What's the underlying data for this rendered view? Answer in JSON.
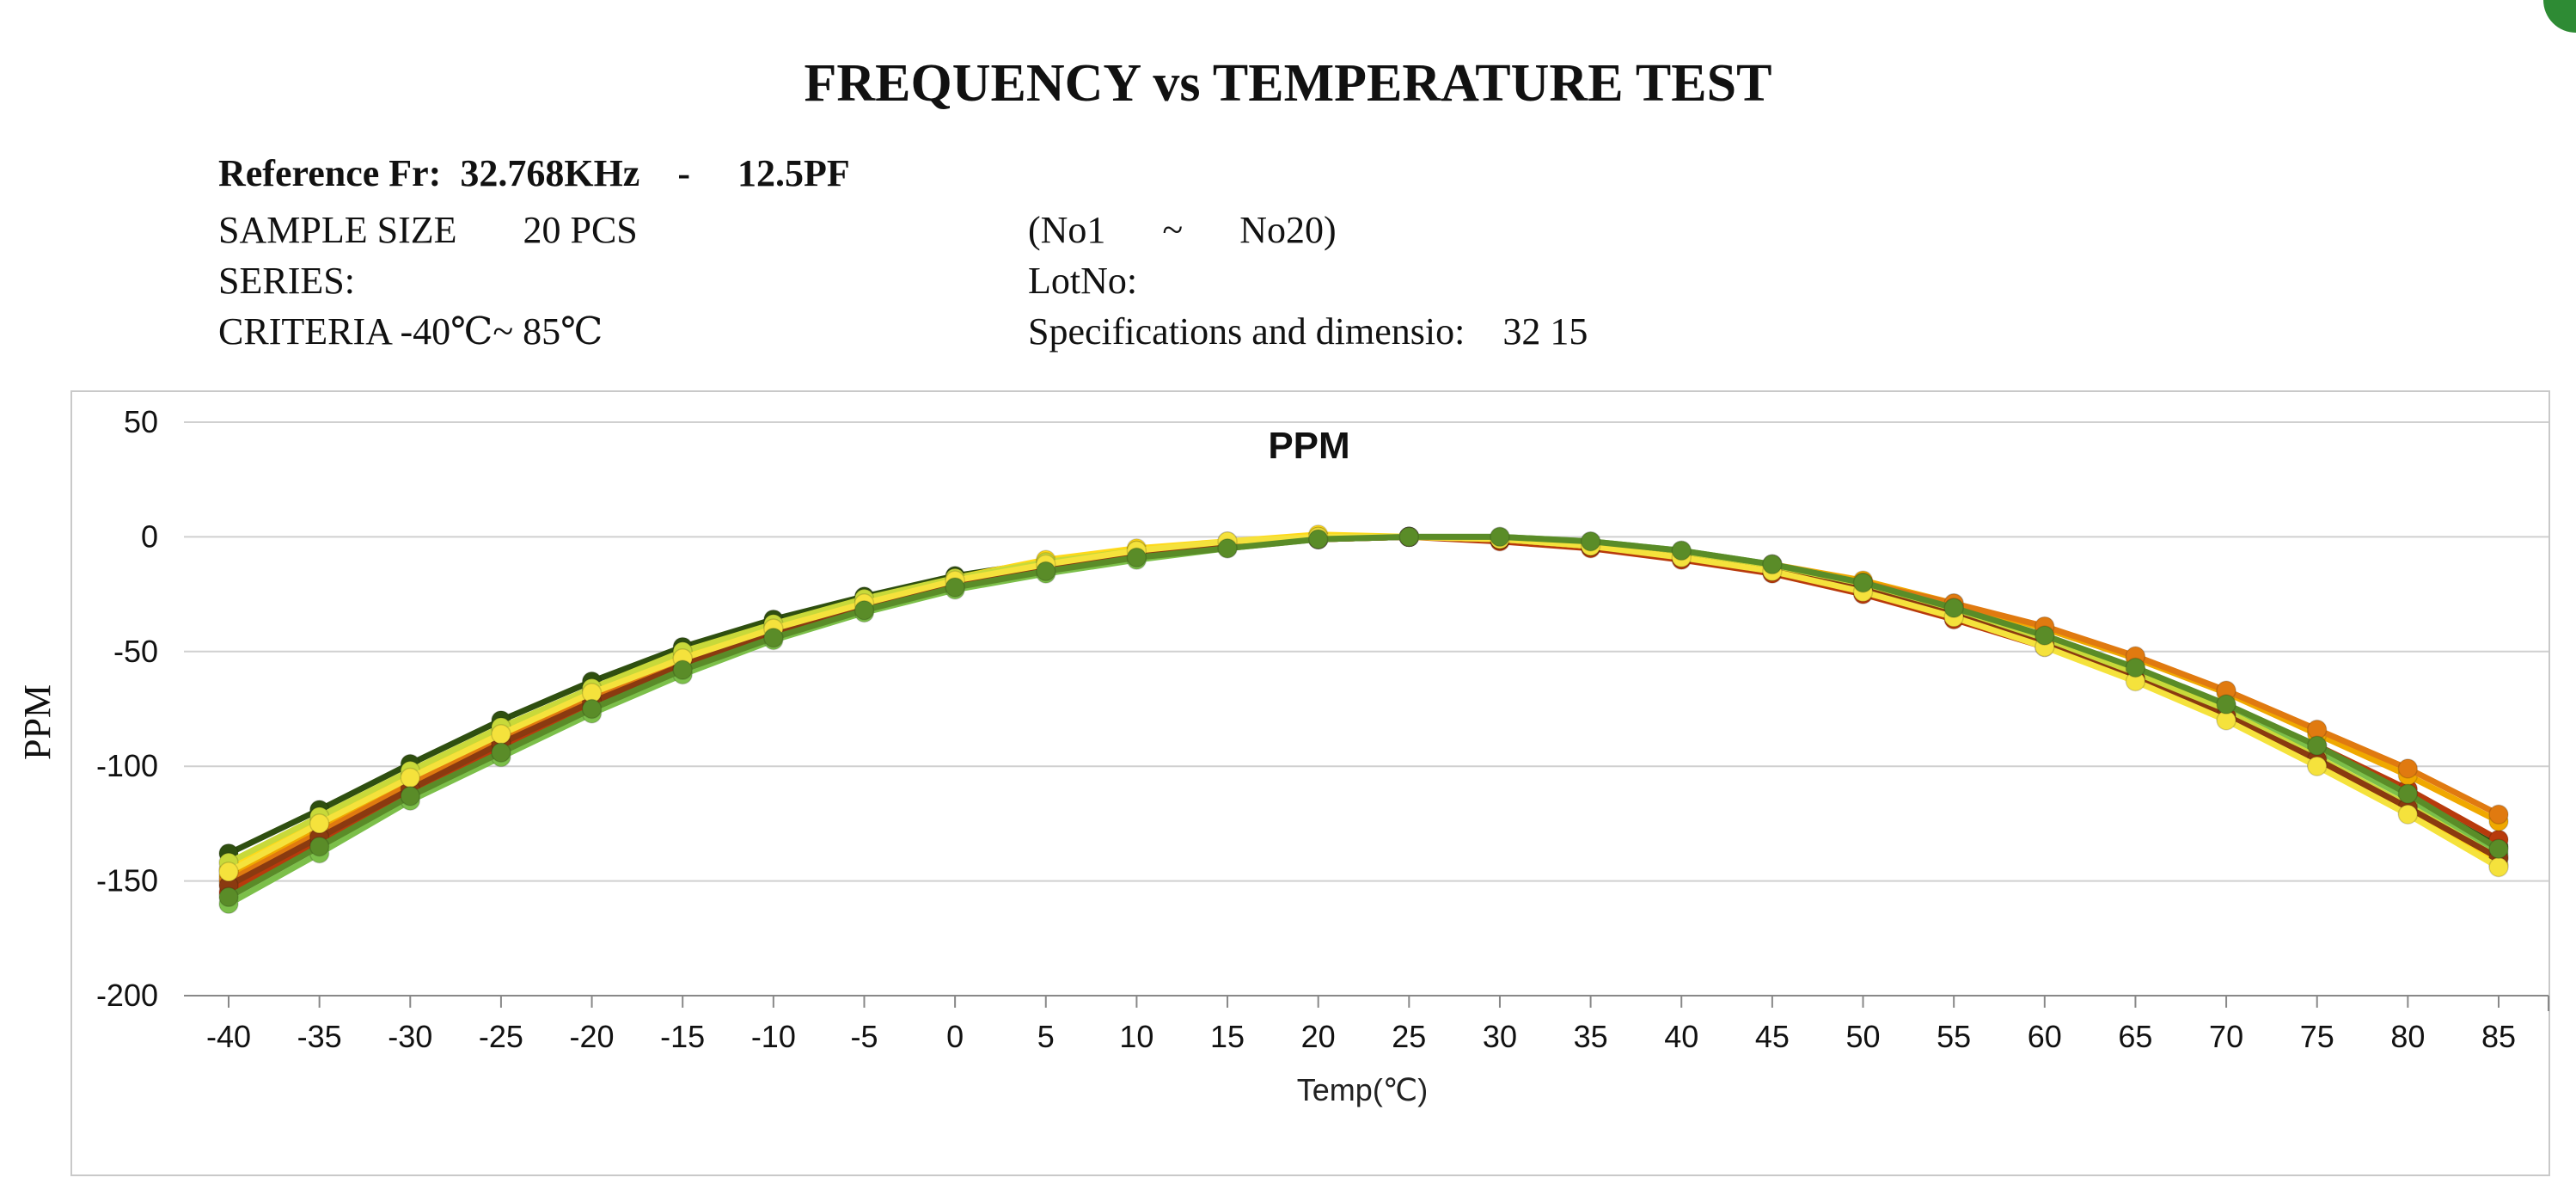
{
  "title": "FREQUENCY vs TEMPERATURE TEST",
  "info": {
    "reference": "Reference Fr:  32.768KHz    -     12.5PF",
    "sample_size": "SAMPLE SIZE       20 PCS",
    "range": "(No1      ~      No20)",
    "series": "SERIES:",
    "lot": "LotNo:",
    "criteria": "CRITERIA -40℃~ 85℃",
    "specs": "Specifications and dimensio:    32 15"
  },
  "colors": {
    "grid": "#d0d0d0",
    "axis": "#888888",
    "series": [
      "#2f4f10",
      "#b83a0c",
      "#f0a800",
      "#ffd91a",
      "#e07a10",
      "#7cbf4a",
      "#c8d93a",
      "#8a3a10",
      "#f5e23c",
      "#5a8c28"
    ]
  },
  "chart_data": {
    "type": "line",
    "title": "PPM",
    "xlabel": "Temp(℃)",
    "ylabel": "PPM",
    "ylim": [
      -200,
      50
    ],
    "xlim": [
      -40,
      85
    ],
    "grid": true,
    "yticks": [
      "50",
      "0",
      "-50",
      "-100",
      "-150",
      "-200"
    ],
    "x": [
      -40,
      -35,
      -30,
      -25,
      -20,
      -15,
      -10,
      -5,
      0,
      5,
      10,
      15,
      20,
      25,
      30,
      35,
      40,
      45,
      50,
      55,
      60,
      65,
      70,
      75,
      80,
      85
    ],
    "xtick_labels": [
      "-40",
      "-35",
      "-30",
      "-25",
      "-20",
      "-15",
      "-10",
      "-5",
      "0",
      "5",
      "10",
      "15",
      "20",
      "25",
      "30",
      "35",
      "40",
      "45",
      "50",
      "55",
      "60",
      "65",
      "70",
      "75",
      "80",
      "85"
    ],
    "series": [
      {
        "values": [
          -138,
          -119,
          -99,
          -80,
          -63,
          -48,
          -36,
          -26,
          -17,
          -11,
          -6,
          -3,
          -1,
          0,
          -1,
          -3,
          -7,
          -13,
          -21,
          -31,
          -44,
          -58,
          -74,
          -93,
          -113,
          -135
        ]
      },
      {
        "values": [
          -155,
          -133,
          -112,
          -92,
          -74,
          -57,
          -42,
          -30,
          -21,
          -14,
          -8,
          -4,
          -1,
          0,
          -2,
          -5,
          -10,
          -16,
          -25,
          -36,
          -48,
          -61,
          -76,
          -91,
          -110,
          -132
        ]
      },
      {
        "values": [
          -148,
          -127,
          -106,
          -87,
          -69,
          -54,
          -40,
          -29,
          -19,
          -12,
          -7,
          -3,
          -1,
          0,
          -1,
          -3,
          -7,
          -12,
          -19,
          -29,
          -40,
          -53,
          -68,
          -86,
          -104,
          -124
        ]
      },
      {
        "values": [
          -145,
          -124,
          -104,
          -85,
          -67,
          -52,
          -39,
          -28,
          -18,
          -10,
          -5,
          -2,
          1,
          0,
          -1,
          -4,
          -8,
          -14,
          -22,
          -33,
          -46,
          -61,
          -79,
          -99,
          -120,
          -143
        ]
      },
      {
        "values": [
          -150,
          -129,
          -108,
          -89,
          -71,
          -55,
          -41,
          -30,
          -20,
          -13,
          -7,
          -3,
          -1,
          0,
          -1,
          -3,
          -7,
          -12,
          -20,
          -29,
          -39,
          -52,
          -67,
          -84,
          -101,
          -121
        ]
      },
      {
        "values": [
          -160,
          -138,
          -115,
          -96,
          -77,
          -60,
          -45,
          -33,
          -23,
          -16,
          -10,
          -5,
          -1,
          0,
          0,
          -2,
          -6,
          -12,
          -20,
          -31,
          -44,
          -58,
          -75,
          -93,
          -114,
          -138
        ]
      },
      {
        "values": [
          -142,
          -122,
          -102,
          -83,
          -66,
          -50,
          -38,
          -27,
          -18,
          -11,
          -6,
          -3,
          0,
          0,
          -1,
          -4,
          -8,
          -14,
          -22,
          -32,
          -45,
          -59,
          -76,
          -96,
          -117,
          -140
        ]
      },
      {
        "values": [
          -152,
          -131,
          -110,
          -90,
          -72,
          -56,
          -42,
          -31,
          -21,
          -14,
          -8,
          -4,
          -1,
          0,
          -1,
          -4,
          -9,
          -15,
          -23,
          -34,
          -47,
          -62,
          -78,
          -97,
          -118,
          -140
        ]
      },
      {
        "values": [
          -146,
          -125,
          -105,
          -86,
          -68,
          -53,
          -40,
          -29,
          -19,
          -12,
          -6,
          -2,
          0,
          0,
          -1,
          -4,
          -9,
          -15,
          -24,
          -35,
          -48,
          -63,
          -80,
          -100,
          -121,
          -144
        ]
      },
      {
        "values": [
          -157,
          -135,
          -113,
          -94,
          -75,
          -58,
          -44,
          -32,
          -22,
          -15,
          -9,
          -5,
          -1,
          0,
          0,
          -2,
          -6,
          -12,
          -20,
          -31,
          -43,
          -57,
          -73,
          -91,
          -112,
          -136
        ]
      }
    ]
  }
}
